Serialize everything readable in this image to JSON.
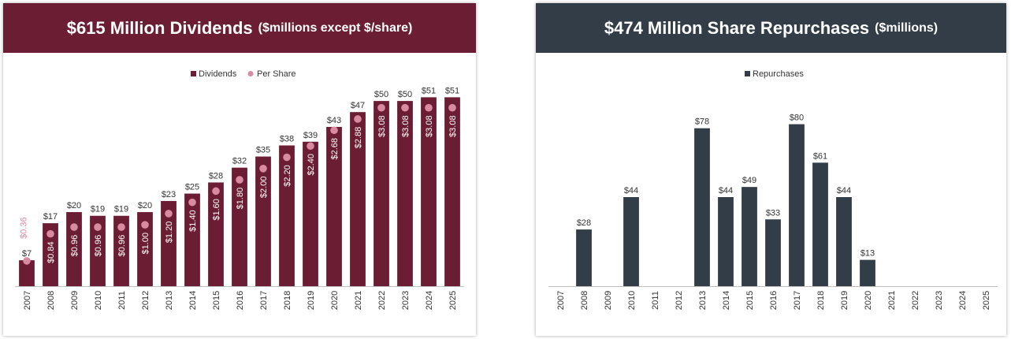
{
  "colors": {
    "dividend_bar": "#6b1d33",
    "per_share_dot": "#d98aa0",
    "repurchase_bar": "#323d48",
    "left_banner": "#6b1d33",
    "right_banner": "#323d48"
  },
  "left": {
    "title_main": "$615 Million Dividends",
    "title_sub": "($millions except $/share)"
  },
  "right": {
    "title_main": "$474 Million Share Repurchases",
    "title_sub": "($millions)"
  },
  "chart_data": [
    {
      "type": "bar",
      "categories": [
        "2007",
        "2008",
        "2009",
        "2010",
        "2011",
        "2012",
        "2013",
        "2014",
        "2015",
        "2016",
        "2017",
        "2018",
        "2019",
        "2020",
        "2021",
        "2022",
        "2023",
        "2024",
        "2025"
      ],
      "series": [
        {
          "name": "Dividends",
          "values": [
            7,
            17,
            20,
            19,
            19,
            20,
            23,
            25,
            28,
            32,
            35,
            38,
            39,
            43,
            47,
            50,
            50,
            51,
            51
          ],
          "labels": [
            "$7",
            "$17",
            "$20",
            "$19",
            "$19",
            "$20",
            "$23",
            "$25",
            "$28",
            "$32",
            "$35",
            "$38",
            "$39",
            "$43",
            "$47",
            "$50",
            "$50",
            "$51",
            "$51"
          ]
        },
        {
          "name": "Per Share",
          "type": "scatter",
          "values": [
            0.36,
            0.84,
            0.96,
            0.96,
            0.96,
            1.0,
            1.2,
            1.4,
            1.6,
            1.8,
            2.0,
            2.2,
            2.4,
            2.68,
            2.88,
            3.08,
            3.08,
            3.08,
            3.08
          ],
          "labels": [
            "$0.36",
            "$0.84",
            "$0.96",
            "$0.96",
            "$0.96",
            "$1.00",
            "$1.20",
            "$1.40",
            "$1.60",
            "$1.80",
            "$2.00",
            "$2.20",
            "$2.40",
            "$2.68",
            "$2.88",
            "$3.08",
            "$3.08",
            "$3.08",
            "$3.08"
          ]
        }
      ],
      "ylim": [
        0,
        53
      ],
      "legend": "top-center",
      "grid": false
    },
    {
      "type": "bar",
      "categories": [
        "2007",
        "2008",
        "2009",
        "2010",
        "2011",
        "2012",
        "2013",
        "2014",
        "2015",
        "2016",
        "2017",
        "2018",
        "2019",
        "2020",
        "2021",
        "2022",
        "2023",
        "2024",
        "2025"
      ],
      "series": [
        {
          "name": "Repurchases",
          "values": [
            null,
            28,
            null,
            44,
            null,
            null,
            78,
            44,
            49,
            33,
            80,
            61,
            44,
            13,
            null,
            null,
            null,
            null,
            null
          ],
          "labels": [
            "",
            "$28",
            "",
            "$44",
            "",
            "",
            "$78",
            "$44",
            "$49",
            "$33",
            "$80",
            "$61",
            "$44",
            "$13",
            "",
            "",
            "",
            "",
            ""
          ]
        }
      ],
      "ylim": [
        0,
        88
      ],
      "legend": "top-center",
      "grid": false
    }
  ]
}
